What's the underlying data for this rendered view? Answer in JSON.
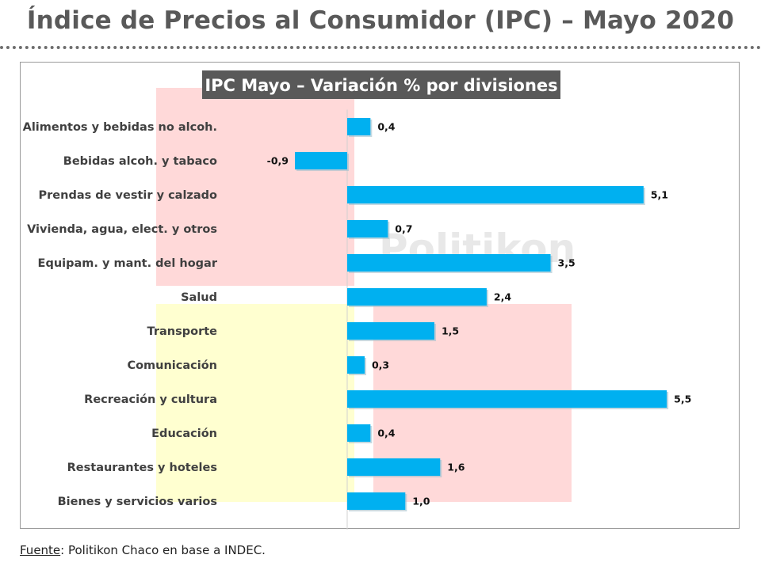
{
  "page": {
    "title": "Índice de Precios al Consumidor (IPC) – Mayo 2020",
    "source_label": "Fuente",
    "source_text": ": Politikon Chaco en base a INDEC.",
    "watermark": "Politikon"
  },
  "colors": {
    "bar": "#00b0f0",
    "title_box": "#595959",
    "title_text": "#ffffff",
    "bg_red": "#ffd9d9",
    "bg_yellow": "#ffffd0",
    "watermark": "#d9d9d9"
  },
  "chart_data": {
    "type": "bar",
    "orientation": "horizontal",
    "title": "IPC Mayo – Variación % por divisiones",
    "xlabel": "",
    "ylabel": "",
    "categories": [
      "Alimentos y bebidas no alcoh.",
      "Bebidas alcoh. y tabaco",
      "Prendas de vestir y calzado",
      "Vivienda, agua, elect. y otros",
      "Equipam. y mant. del hogar",
      "Salud",
      "Transporte",
      "Comunicación",
      "Recreación y cultura",
      "Educación",
      "Restaurantes y hoteles",
      "Bienes y servicios varios"
    ],
    "values": [
      0.4,
      -0.9,
      5.1,
      0.7,
      3.5,
      2.4,
      1.5,
      0.3,
      5.5,
      0.4,
      1.6,
      1.0
    ],
    "value_labels": [
      "0,4",
      "-0,9",
      "5,1",
      "0,7",
      "3,5",
      "2,4",
      "1,5",
      "0,3",
      "5,5",
      "0,4",
      "1,6",
      "1,0"
    ],
    "xlim": [
      -1,
      5.5
    ],
    "grid": false,
    "legend": "none"
  }
}
